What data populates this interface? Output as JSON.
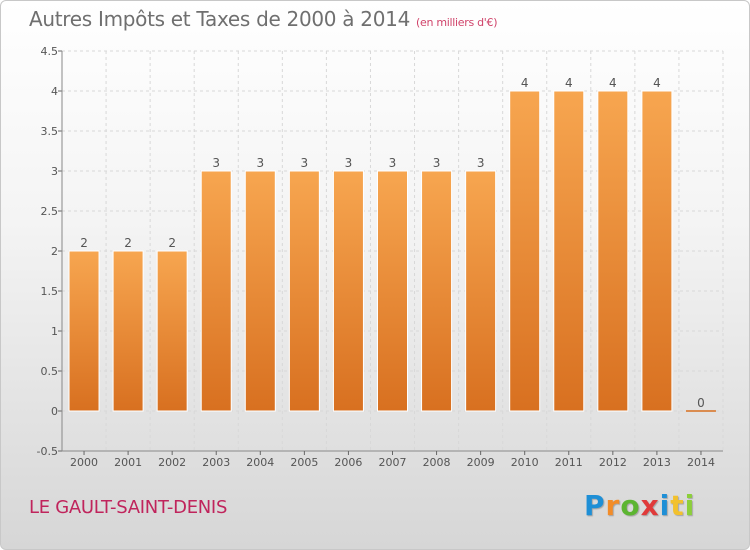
{
  "chart_data": {
    "type": "bar",
    "title": "Autres Impôts et Taxes de 2000 à 2014",
    "subtitle": "(en milliers d'€)",
    "categories": [
      "2000",
      "2001",
      "2002",
      "2003",
      "2004",
      "2005",
      "2006",
      "2007",
      "2008",
      "2009",
      "2010",
      "2011",
      "2012",
      "2013",
      "2014"
    ],
    "values": [
      2,
      2,
      2,
      3,
      3,
      3,
      3,
      3,
      3,
      3,
      4,
      4,
      4,
      4,
      0
    ],
    "data_labels": [
      "2",
      "2",
      "2",
      "3",
      "3",
      "3",
      "3",
      "3",
      "3",
      "3",
      "4",
      "4",
      "4",
      "4",
      "0"
    ],
    "ylim": [
      -0.5,
      4.5
    ],
    "yticks": [
      "-0.5",
      "0",
      "0.5",
      "1",
      "1.5",
      "2",
      "2.5",
      "3",
      "3.5",
      "4",
      "4.5"
    ],
    "ytick_values": [
      -0.5,
      0,
      0.5,
      1,
      1.5,
      2,
      2.5,
      3,
      3.5,
      4,
      4.5
    ],
    "grid": true,
    "bar_color_top": "#f7a650",
    "bar_color_bottom": "#d87020"
  },
  "footer": {
    "commune": "LE GAULT-SAINT-DENIS",
    "logo_letters": [
      "P",
      "r",
      "o",
      "x",
      "i",
      "t",
      "i"
    ],
    "logo_colors": [
      "#1e8fd6",
      "#f28c28",
      "#5cb531",
      "#e03a3a",
      "#1e8fd6",
      "#f2c12e",
      "#8ccf3a"
    ]
  }
}
